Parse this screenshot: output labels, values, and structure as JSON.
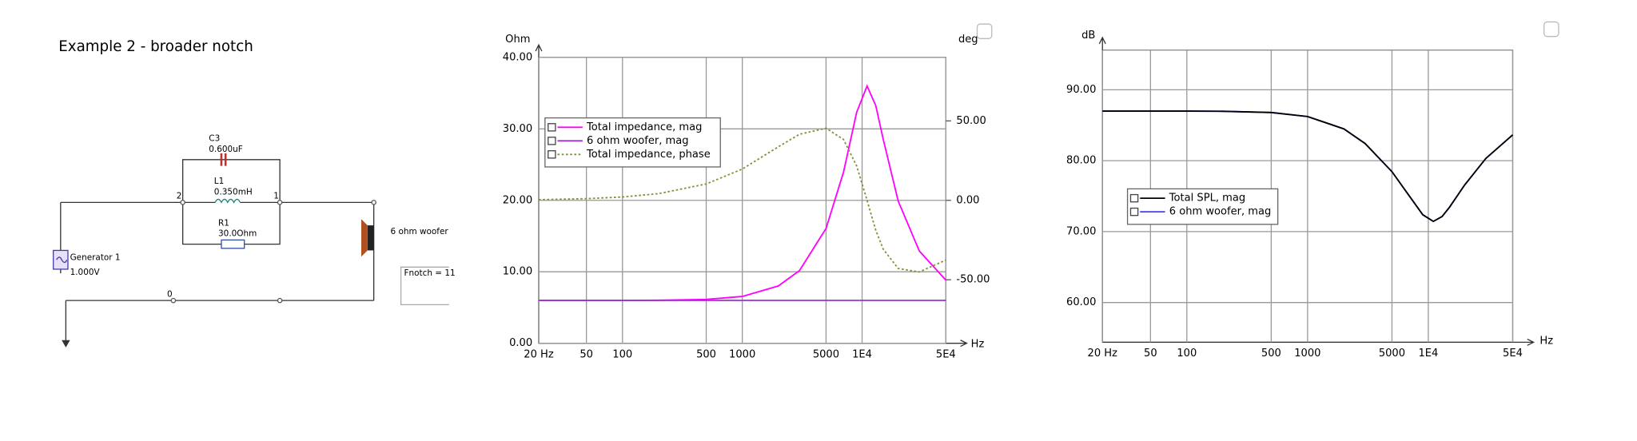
{
  "schematic": {
    "title": "Example 2 - broader notch",
    "components": [
      {
        "name": "C3",
        "value": "0.600uF"
      },
      {
        "name": "L1",
        "value": "0.350mH"
      },
      {
        "name": "R1",
        "value": "30.0Ohm"
      },
      {
        "name": "Generator 1",
        "value": "1.000V"
      }
    ],
    "load": "6 ohm woofer",
    "nodes": [
      "2",
      "1",
      "0"
    ],
    "note": "Fnotch = 11"
  },
  "chart_data": [
    {
      "type": "line",
      "xscale": "log",
      "ylabel": "Ohm",
      "y2label": "deg",
      "xlabel": "Hz",
      "grid": true,
      "x": [
        20,
        50,
        100,
        200,
        500,
        1000,
        2000,
        3000,
        5000,
        7000,
        9000,
        11000,
        13000,
        15000,
        20000,
        30000,
        50000
      ],
      "xlim": [
        20,
        50000
      ],
      "xticks": [
        {
          "value": 20,
          "label": "20 Hz"
        },
        50,
        100,
        500,
        1000,
        5000,
        {
          "value": 10000,
          "label": "1E4"
        },
        {
          "value": 50000,
          "label": "5E4"
        }
      ],
      "ylim": [
        0,
        40
      ],
      "yticks": [
        {
          "value": 0,
          "label": "0.00"
        },
        {
          "value": 10,
          "label": "10.00"
        },
        {
          "value": 20,
          "label": "20.00"
        },
        {
          "value": 30,
          "label": "30.00"
        },
        {
          "value": 40,
          "label": "40.00"
        }
      ],
      "y2lim": [
        -90,
        90
      ],
      "y2ticks": [
        {
          "value": -50,
          "label": "-50.00"
        },
        {
          "value": 0,
          "label": "0.00"
        },
        {
          "value": 50,
          "label": "50.00"
        }
      ],
      "series": [
        {
          "name": "Total impedance, mag",
          "color": "#ff00ff",
          "line_style": "solid",
          "values": [
            6.0,
            6.0,
            6.0,
            6.02,
            6.14,
            6.55,
            8.02,
            10.17,
            16.06,
            23.97,
            32.3,
            36.0,
            33.26,
            28.54,
            19.91,
            12.92,
            8.83
          ]
        },
        {
          "name": "6 ohm woofer, mag",
          "color": "#9933cc",
          "line_style": "solid",
          "values": [
            6,
            6,
            6,
            6,
            6,
            6,
            6,
            6,
            6,
            6,
            6,
            6,
            6,
            6,
            6,
            6,
            6
          ]
        },
        {
          "name": "Total impedance, phase",
          "color": "#8c8c3c",
          "line_style": "dotted",
          "axis": "y2",
          "values": [
            0.4,
            1.05,
            2.1,
            4.2,
            10.3,
            19.7,
            33.7,
            41.6,
            45.4,
            38.3,
            21.7,
            0,
            -18.8,
            -30.7,
            -42.9,
            -45.1,
            -37.6
          ]
        }
      ]
    },
    {
      "type": "line",
      "xscale": "log",
      "ylabel": "dB",
      "xlabel": "Hz",
      "grid": true,
      "x": [
        20,
        50,
        100,
        200,
        500,
        1000,
        2000,
        3000,
        5000,
        7000,
        9000,
        11000,
        13000,
        15000,
        20000,
        30000,
        50000
      ],
      "xlim": [
        20,
        50000
      ],
      "xticks": [
        {
          "value": 20,
          "label": "20 Hz"
        },
        50,
        100,
        500,
        1000,
        5000,
        {
          "value": 10000,
          "label": "1E4"
        },
        {
          "value": 50000,
          "label": "5E4"
        }
      ],
      "ylim": [
        54.4,
        95.6
      ],
      "yticks": [
        {
          "value": 60,
          "label": "60.00"
        },
        {
          "value": 70,
          "label": "70.00"
        },
        {
          "value": 80,
          "label": "80.00"
        },
        {
          "value": 90,
          "label": "90.00"
        }
      ],
      "series": [
        {
          "name": "6 ohm woofer, mag",
          "color": "#4040ff",
          "line_style": "solid",
          "values": [
            87,
            87,
            87,
            86.97,
            86.8,
            86.23,
            84.48,
            82.41,
            78.45,
            74.97,
            72.38,
            71.44,
            72.12,
            73.45,
            76.58,
            80.33,
            83.64
          ]
        },
        {
          "name": "Total SPL, mag",
          "color": "#000000",
          "line_style": "solid",
          "values": [
            87,
            87,
            87,
            86.97,
            86.8,
            86.23,
            84.48,
            82.41,
            78.45,
            74.97,
            72.38,
            71.44,
            72.12,
            73.45,
            76.58,
            80.33,
            83.64
          ]
        }
      ]
    }
  ]
}
